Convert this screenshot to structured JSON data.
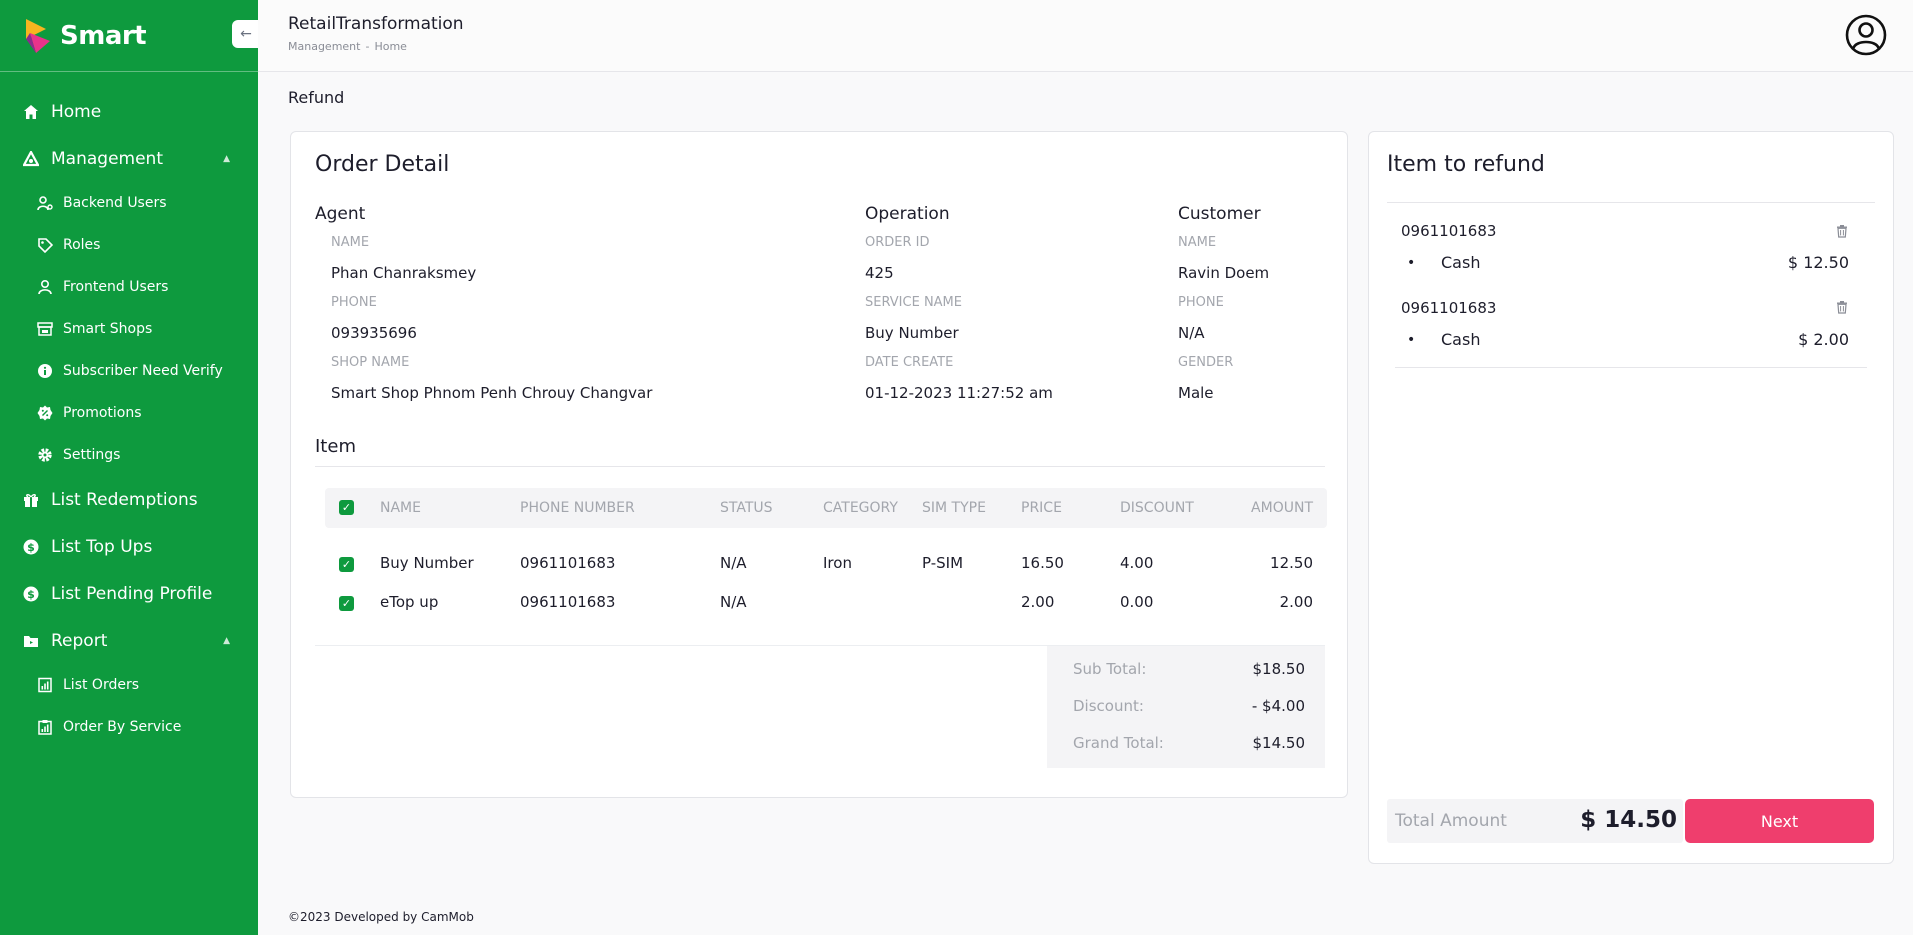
{
  "brand": {
    "name": "Smart"
  },
  "sidebar": {
    "collapse_icon": "arrow-left-icon",
    "items": [
      {
        "label": "Home",
        "icon": "home-icon"
      },
      {
        "label": "Management",
        "icon": "triangle-nodes-icon",
        "expanded": true,
        "children": [
          {
            "label": "Backend Users",
            "icon": "user-cog-icon"
          },
          {
            "label": "Roles",
            "icon": "tag-icon"
          },
          {
            "label": "Frontend Users",
            "icon": "user-badge-icon"
          },
          {
            "label": "Smart Shops",
            "icon": "shop-icon"
          },
          {
            "label": "Subscriber Need Verify",
            "icon": "info-icon"
          },
          {
            "label": "Promotions",
            "icon": "badge-percent-icon"
          },
          {
            "label": "Settings",
            "icon": "gear-icon"
          }
        ]
      },
      {
        "label": "List Redemptions",
        "icon": "gift-icon"
      },
      {
        "label": "List Top Ups",
        "icon": "dollar-icon"
      },
      {
        "label": "List Pending Profile",
        "icon": "dollar-icon"
      },
      {
        "label": "Report",
        "icon": "folder-icon",
        "expanded": true,
        "children": [
          {
            "label": "List Orders",
            "icon": "report-icon"
          },
          {
            "label": "Order By Service",
            "icon": "clipboard-chart-icon"
          }
        ]
      }
    ]
  },
  "header": {
    "app_title": "RetailTransformation",
    "breadcrumb": [
      "Management",
      "Home"
    ],
    "breadcrumb_sep": "-"
  },
  "page": {
    "heading": "Refund"
  },
  "order": {
    "title": "Order Detail",
    "agent": {
      "heading": "Agent",
      "name_label": "NAME",
      "name": "Phan Chanraksmey",
      "phone_label": "PHONE",
      "phone": "093935696",
      "shop_label": "SHOP NAME",
      "shop": "Smart Shop Phnom Penh Chrouy Changvar"
    },
    "operation": {
      "heading": "Operation",
      "order_id_label": "ORDER ID",
      "order_id": "425",
      "service_label": "SERVICE NAME",
      "service": "Buy Number",
      "date_label": "DATE CREATE",
      "date": "01-12-2023 11:27:52 am"
    },
    "customer": {
      "heading": "Customer",
      "name_label": "NAME",
      "name": "Ravin Doem",
      "phone_label": "PHONE",
      "phone": "N/A",
      "gender_label": "GENDER",
      "gender": "Male"
    },
    "items": {
      "title": "Item",
      "columns": [
        "NAME",
        "PHONE NUMBER",
        "STATUS",
        "CATEGORY",
        "SIM TYPE",
        "PRICE",
        "DISCOUNT",
        "AMOUNT"
      ],
      "rows": [
        {
          "name": "Buy Number",
          "phone": "0961101683",
          "status": "N/A",
          "category": "Iron",
          "sim_type": "P-SIM",
          "price": "16.50",
          "discount": "4.00",
          "amount": "12.50",
          "checked": true
        },
        {
          "name": "eTop up",
          "phone": "0961101683",
          "status": "N/A",
          "category": "",
          "sim_type": "",
          "price": "2.00",
          "discount": "0.00",
          "amount": "2.00",
          "checked": true
        }
      ]
    },
    "totals": {
      "sub_total_label": "Sub Total:",
      "sub_total": "$18.50",
      "discount_label": "Discount:",
      "discount": "- $4.00",
      "grand_total_label": "Grand Total:",
      "grand_total": "$14.50"
    }
  },
  "refund": {
    "title": "Item to refund",
    "entries": [
      {
        "phone": "0961101683",
        "bullet": "•",
        "method": "Cash",
        "amount": "$ 12.50"
      },
      {
        "phone": "0961101683",
        "bullet": "•",
        "method": "Cash",
        "amount": "$ 2.00"
      }
    ],
    "total_label": "Total Amount",
    "total_value": "$ 14.50",
    "next_label": "Next"
  },
  "footer": {
    "text": "©2023  Developed by CamMob"
  },
  "colors": {
    "brand_green": "#0e9a3e",
    "next_button": "#ef3e6d"
  }
}
